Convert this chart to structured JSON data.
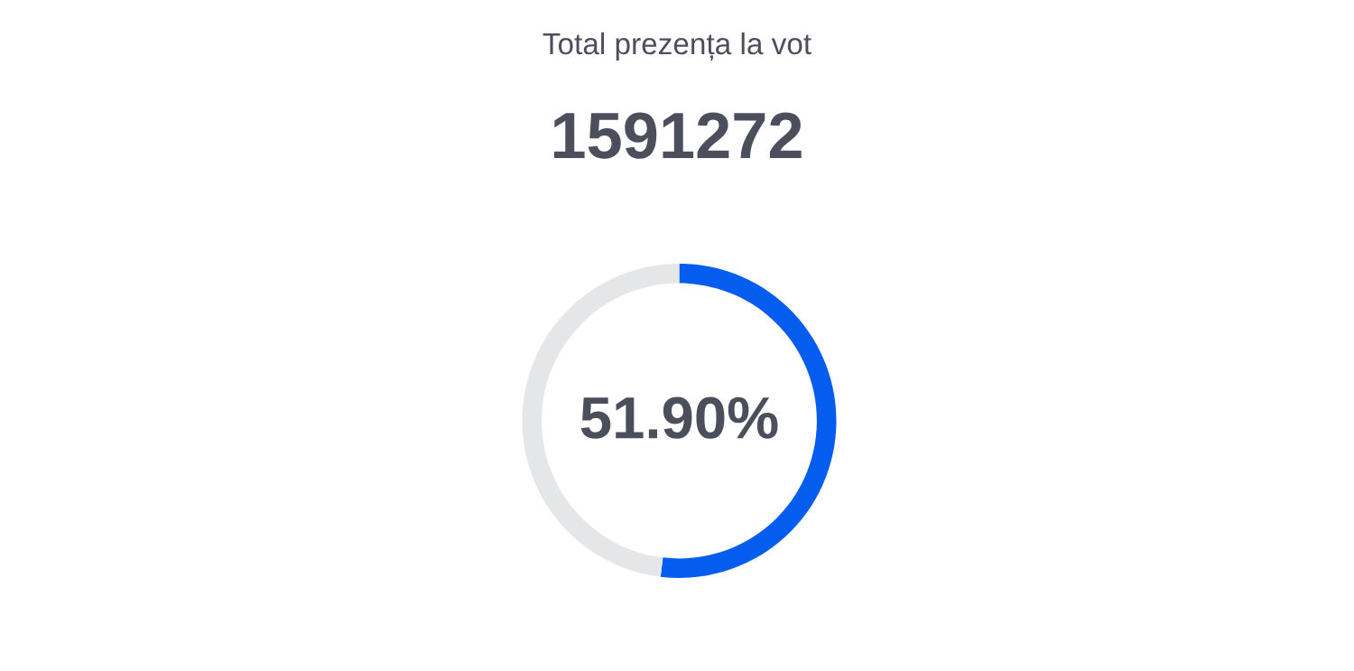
{
  "chart_data": {
    "type": "donut",
    "title": "Total prezența la vot",
    "subtitle": "1591272",
    "categories": [
      null,
      null
    ],
    "values": [
      51.9,
      48.1
    ],
    "colors": [
      "#055df0",
      "#e5e6e8"
    ],
    "annotations": [
      "51.90%"
    ]
  }
}
